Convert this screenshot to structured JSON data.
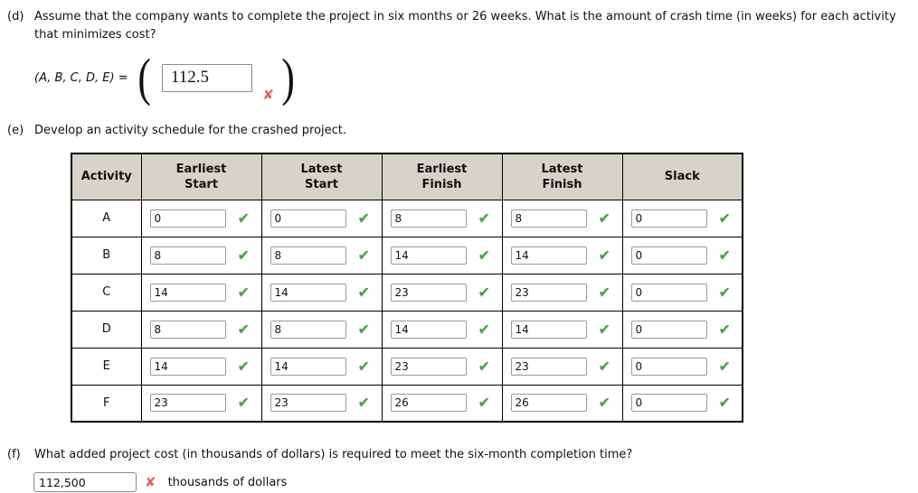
{
  "colors": {
    "header_bg": "#d7d3c9",
    "table_border": "#000000",
    "correct_green": "#46a146",
    "incorrect_red": "#e8605a"
  },
  "icons": {
    "correct": "✔",
    "incorrect": "✘"
  },
  "part_d": {
    "label": "(d)",
    "question": "Assume that the company wants to complete the project in six months or 26 weeks. What is the amount of crash time (in weeks) for each activity that minimizes cost?",
    "answer_prefix": "(A, B, C, D, E) =",
    "open_paren": "(",
    "close_paren": ")",
    "answer_value": "112.5",
    "result": "incorrect"
  },
  "part_e": {
    "label": "(e)",
    "question": "Develop an activity schedule for the crashed project.",
    "table": {
      "headers": [
        "Activity",
        "Earliest\nStart",
        "Latest\nStart",
        "Earliest\nFinish",
        "Latest\nFinish",
        "Slack"
      ],
      "rows": [
        {
          "activity": "A",
          "earliest_start": "0",
          "latest_start": "0",
          "earliest_finish": "8",
          "latest_finish": "8",
          "slack": "0",
          "marks": "all-correct"
        },
        {
          "activity": "B",
          "earliest_start": "8",
          "latest_start": "8",
          "earliest_finish": "14",
          "latest_finish": "14",
          "slack": "0",
          "marks": "all-correct"
        },
        {
          "activity": "C",
          "earliest_start": "14",
          "latest_start": "14",
          "earliest_finish": "23",
          "latest_finish": "23",
          "slack": "0",
          "marks": "all-correct"
        },
        {
          "activity": "D",
          "earliest_start": "8",
          "latest_start": "8",
          "earliest_finish": "14",
          "latest_finish": "14",
          "slack": "0",
          "marks": "all-correct"
        },
        {
          "activity": "E",
          "earliest_start": "14",
          "latest_start": "14",
          "earliest_finish": "23",
          "latest_finish": "23",
          "slack": "0",
          "marks": "all-correct"
        },
        {
          "activity": "F",
          "earliest_start": "23",
          "latest_start": "23",
          "earliest_finish": "26",
          "latest_finish": "26",
          "slack": "0",
          "marks": "all-correct"
        }
      ]
    }
  },
  "part_f": {
    "label": "(f)",
    "question": "What added project cost (in thousands of dollars) is required to meet the six-month completion time?",
    "answer_value": "112,500",
    "answer_suffix": "thousands of dollars",
    "result": "incorrect"
  }
}
